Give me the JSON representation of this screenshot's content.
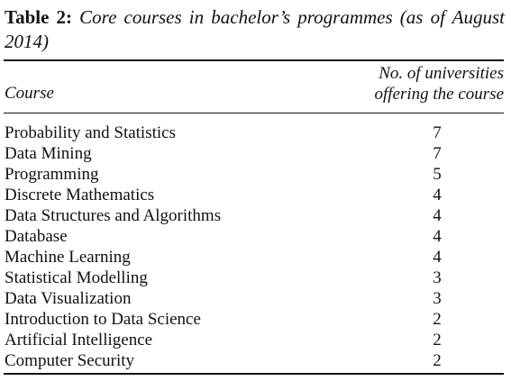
{
  "caption": {
    "label": "Table 2:",
    "text": "Core courses in bachelor’s programmes (as of August 2014)"
  },
  "table": {
    "headers": {
      "course": "Course",
      "count_line1": "No. of universities",
      "count_line2": "offering the course"
    },
    "rows": [
      {
        "course": "Probability and Statistics",
        "count": "7"
      },
      {
        "course": "Data Mining",
        "count": "7"
      },
      {
        "course": "Programming",
        "count": "5"
      },
      {
        "course": "Discrete Mathematics",
        "count": "4"
      },
      {
        "course": "Data Structures and Algorithms",
        "count": "4"
      },
      {
        "course": "Database",
        "count": "4"
      },
      {
        "course": "Machine Learning",
        "count": "4"
      },
      {
        "course": "Statistical Modelling",
        "count": "3"
      },
      {
        "course": "Data Visualization",
        "count": "3"
      },
      {
        "course": "Introduction to Data Science",
        "count": "2"
      },
      {
        "course": "Artificial Intelligence",
        "count": "2"
      },
      {
        "course": "Computer Security",
        "count": "2"
      }
    ]
  }
}
